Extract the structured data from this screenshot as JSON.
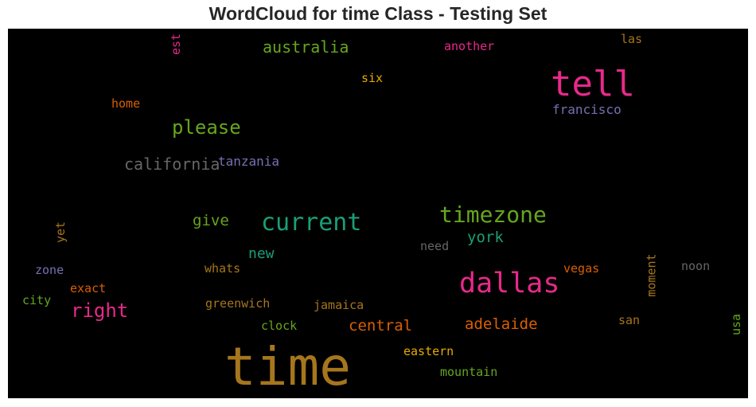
{
  "title": "WordCloud for time Class - Testing Set",
  "words": {
    "time": {
      "text": "time",
      "color": "#a6761d"
    },
    "tell": {
      "text": "tell",
      "color": "#e7298a"
    },
    "dallas": {
      "text": "dallas",
      "color": "#e7298a"
    },
    "current": {
      "text": "current",
      "color": "#1b9e77"
    },
    "timezone": {
      "text": "timezone",
      "color": "#66a61e"
    },
    "please": {
      "text": "please",
      "color": "#66a61e"
    },
    "right": {
      "text": "right",
      "color": "#e7298a"
    },
    "california": {
      "text": "california",
      "color": "#666666"
    },
    "australia": {
      "text": "australia",
      "color": "#66a61e"
    },
    "adelaide": {
      "text": "adelaide",
      "color": "#d95f02"
    },
    "central": {
      "text": "central",
      "color": "#d95f02"
    },
    "york": {
      "text": "york",
      "color": "#1b9e77"
    },
    "give": {
      "text": "give",
      "color": "#66a61e"
    },
    "new": {
      "text": "new",
      "color": "#1b9e77"
    },
    "tanzania": {
      "text": "tanzania",
      "color": "#7570b3"
    },
    "francisco": {
      "text": "francisco",
      "color": "#7570b3"
    },
    "another": {
      "text": "another",
      "color": "#e7298a"
    },
    "six": {
      "text": "six",
      "color": "#e6ab02"
    },
    "home": {
      "text": "home",
      "color": "#d95f02"
    },
    "las": {
      "text": "las",
      "color": "#a6761d"
    },
    "est": {
      "text": "est",
      "color": "#e7298a"
    },
    "need": {
      "text": "need",
      "color": "#666666"
    },
    "whats": {
      "text": "whats",
      "color": "#a6761d"
    },
    "vegas": {
      "text": "vegas",
      "color": "#d95f02"
    },
    "moment": {
      "text": "moment",
      "color": "#a6761d"
    },
    "noon": {
      "text": "noon",
      "color": "#666666"
    },
    "zone": {
      "text": "zone",
      "color": "#7570b3"
    },
    "exact": {
      "text": "exact",
      "color": "#d95f02"
    },
    "yet": {
      "text": "yet",
      "color": "#a6761d"
    },
    "city": {
      "text": "city",
      "color": "#66a61e"
    },
    "greenwich": {
      "text": "greenwich",
      "color": "#a6761d"
    },
    "jamaica": {
      "text": "jamaica",
      "color": "#a6761d"
    },
    "clock": {
      "text": "clock",
      "color": "#66a61e"
    },
    "san": {
      "text": "san",
      "color": "#a6761d"
    },
    "usa": {
      "text": "usa",
      "color": "#66a61e"
    },
    "eastern": {
      "text": "eastern",
      "color": "#e6ab02"
    },
    "mountain": {
      "text": "mountain",
      "color": "#66a61e"
    }
  }
}
